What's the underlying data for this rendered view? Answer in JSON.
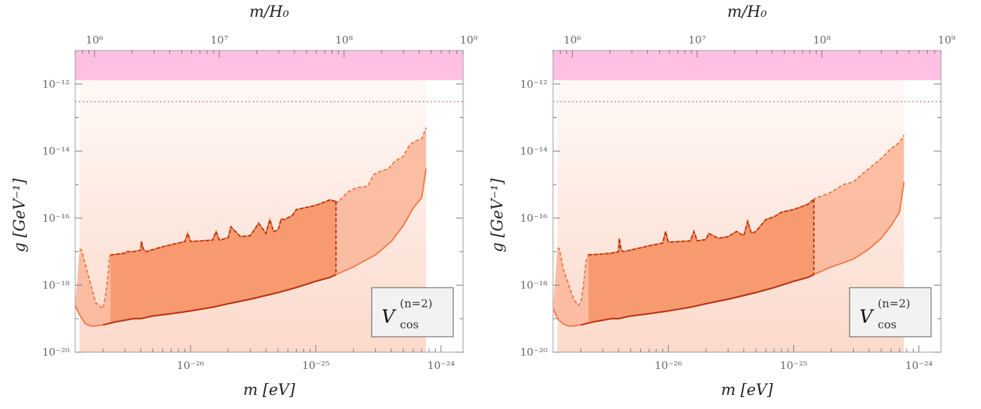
{
  "chart_data": [
    {
      "type": "area",
      "xlabel": "m [eV]",
      "ylabel": "g [GeV⁻¹]",
      "top_xlabel": "m/H₀",
      "legend_label": "V",
      "legend_sub": "cos",
      "legend_sup": "(n=2)",
      "x_ticks": [
        {
          "label": "10⁻²⁶",
          "value": 1e-26
        },
        {
          "label": "10⁻²⁵",
          "value": 1e-25
        },
        {
          "label": "10⁻²⁴",
          "value": 1e-24
        }
      ],
      "y_ticks": [
        {
          "label": "10⁻¹²",
          "value": 1e-12
        },
        {
          "label": "10⁻¹⁴",
          "value": 1e-14
        },
        {
          "label": "10⁻¹⁶",
          "value": 1e-16
        },
        {
          "label": "10⁻¹⁸",
          "value": 1e-18
        },
        {
          "label": "10⁻²⁰",
          "value": 1e-20
        }
      ],
      "top_ticks": [
        {
          "label": "10⁶",
          "value": 1000000.0
        },
        {
          "label": "10⁷",
          "value": 10000000.0
        },
        {
          "label": "10⁸",
          "value": 100000000.0
        },
        {
          "label": "10⁹",
          "value": 1000000000.0
        }
      ],
      "xlim": [
        1.2e-27,
        1.5e-24
      ],
      "ylim": [
        1e-20,
        1e-11
      ],
      "top_xlim": [
        700000.0,
        900000000.0
      ],
      "x_scale": "log",
      "y_scale": "log",
      "excluded_band_y": [
        1.3e-12,
        1e-11
      ],
      "dotted_line_y": 3e-13,
      "colors": {
        "excluded": "#ffc0e4",
        "light": "#fcd7c8",
        "mid": "#fbb89b",
        "dark": "#f89a70",
        "line_dark": "#b83410",
        "line_light": "#f27a4a",
        "dotted": "#c45a6a"
      },
      "series": [
        {
          "x": [
            1.3e-27,
            1.35e-27,
            1.45e-27,
            1.6e-27,
            1.75e-27,
            2e-27,
            2.1e-27,
            2.2e-27,
            2.25e-27,
            2.3e-27,
            2.35e-27,
            3e-27,
            3.1e-27,
            3.5e-27,
            4e-27,
            4.05e-27,
            4.2e-27,
            4.4e-27,
            6e-27,
            6.5e-27,
            7e-27,
            9e-27,
            9.5e-27,
            1e-26,
            1.5e-26,
            1.6e-26,
            1.7e-26,
            2e-26,
            2.1e-26,
            2.5e-26,
            3e-26,
            3.5e-26,
            4e-26,
            4.3e-26,
            4.6e-26,
            5e-26,
            5.3e-26,
            5.6e-26,
            6.5e-26,
            7e-26,
            8e-26,
            1e-25,
            1.3e-25,
            1.5e-25,
            1.8e-25,
            2.1e-25,
            2.6e-25,
            2.9e-25,
            3.3e-25,
            3.8e-25,
            4.3e-25,
            5e-25,
            5.6e-25,
            6.2e-25,
            7e-25,
            7.6e-25
          ],
          "y": [
            1.2e-17,
            1.1e-17,
            4e-18,
            1e-18,
            3e-19,
            2e-19,
            5e-19,
            2e-18,
            7e-18,
            8e-18,
            8e-18,
            9e-18,
            1e-17,
            1e-17,
            1.1e-17,
            2e-17,
            1.2e-17,
            1e-17,
            1.4e-17,
            1.5e-17,
            1.6e-17,
            2e-17,
            3.5e-17,
            2e-17,
            2.2e-17,
            4e-17,
            2.2e-17,
            2.6e-17,
            5.5e-17,
            2.8e-17,
            3e-17,
            7e-17,
            3.5e-17,
            9e-17,
            4e-17,
            4.4e-17,
            9.5e-17,
            9e-17,
            1.2e-16,
            1.8e-16,
            2e-16,
            2.4e-16,
            3.5e-16,
            3e-16,
            6e-16,
            8e-16,
            9e-16,
            2e-15,
            2.5e-15,
            3e-15,
            5e-15,
            7e-15,
            1.5e-14,
            2e-14,
            2.3e-14,
            5e-14
          ],
          "name": "dashed upper"
        },
        {
          "x": [
            1.2e-27,
            1.3e-27,
            1.45e-27,
            1.6e-27,
            1.7e-27,
            2e-27,
            2.5e-27,
            3e-27,
            3.5e-27,
            4e-27,
            5e-27,
            7e-27,
            1e-26,
            1.5e-26,
            2e-26,
            3e-26,
            5e-26,
            7e-26,
            1e-25,
            1.3e-25,
            1.5e-25,
            2e-25,
            3e-25,
            4e-25,
            5e-25,
            6e-25,
            7e-25,
            7.6e-25
          ],
          "y": [
            2.5e-19,
            1.3e-19,
            7e-20,
            6e-20,
            6e-20,
            6.5e-20,
            8e-20,
            9e-20,
            1e-19,
            1e-19,
            1.2e-19,
            1.4e-19,
            1.7e-19,
            2.2e-19,
            2.8e-19,
            3.8e-19,
            6e-19,
            8.5e-19,
            1.3e-18,
            1.7e-18,
            2.2e-18,
            3.5e-18,
            8e-18,
            2e-17,
            6e-17,
            2e-16,
            4e-16,
            3e-15
          ],
          "name": "solid lower"
        }
      ]
    },
    {
      "type": "area",
      "xlabel": "m [eV]",
      "ylabel": "g [GeV⁻¹]",
      "top_xlabel": "m/H₀",
      "legend_label": "V",
      "legend_sub": "cos",
      "legend_sup": "(n=2)",
      "x_ticks": [
        {
          "label": "10⁻²⁶",
          "value": 1e-26
        },
        {
          "label": "10⁻²⁵",
          "value": 1e-25
        },
        {
          "label": "10⁻²⁴",
          "value": 1e-24
        }
      ],
      "y_ticks": [
        {
          "label": "10⁻¹²",
          "value": 1e-12
        },
        {
          "label": "10⁻¹⁴",
          "value": 1e-14
        },
        {
          "label": "10⁻¹⁶",
          "value": 1e-16
        },
        {
          "label": "10⁻¹⁸",
          "value": 1e-18
        },
        {
          "label": "10⁻²⁰",
          "value": 1e-20
        }
      ],
      "top_ticks": [
        {
          "label": "10⁶",
          "value": 1000000.0
        },
        {
          "label": "10⁷",
          "value": 10000000.0
        },
        {
          "label": "10⁸",
          "value": 100000000.0
        },
        {
          "label": "10⁹",
          "value": 1000000000.0
        }
      ],
      "xlim": [
        1.2e-27,
        1.5e-24
      ],
      "ylim": [
        1e-20,
        1e-11
      ],
      "top_xlim": [
        700000.0,
        900000000.0
      ],
      "x_scale": "log",
      "y_scale": "log",
      "excluded_band_y": [
        1.3e-12,
        1e-11
      ],
      "dotted_line_y": 3e-13,
      "colors": {
        "excluded": "#ffc0e4",
        "light": "#fcd7c8",
        "mid": "#fbb89b",
        "dark": "#f89a70",
        "line_dark": "#b83410",
        "line_light": "#f27a4a",
        "dotted": "#c45a6a"
      },
      "series": [
        {
          "x": [
            1.3e-27,
            1.35e-27,
            1.45e-27,
            1.6e-27,
            1.75e-27,
            1.9e-27,
            2e-27,
            2.1e-27,
            2.2e-27,
            2.3e-27,
            2.35e-27,
            3e-27,
            3.5e-27,
            4e-27,
            4.05e-27,
            4.2e-27,
            4.4e-27,
            6e-27,
            6.5e-27,
            7e-27,
            9e-27,
            9.5e-27,
            1e-26,
            1.5e-26,
            1.6e-26,
            1.7e-26,
            2e-26,
            2.1e-26,
            2.5e-26,
            3e-26,
            3.5e-26,
            4e-26,
            4.3e-26,
            4.6e-26,
            5e-26,
            6e-26,
            7e-26,
            8e-26,
            1e-25,
            1.3e-25,
            1.5e-25,
            1.8e-25,
            2e-25,
            2.5e-25,
            3e-25,
            3.5e-25,
            4e-25,
            5e-25,
            6e-25,
            7e-25,
            7.6e-25
          ],
          "y": [
            1.3e-17,
            1.2e-17,
            3e-18,
            1e-18,
            4e-19,
            2.5e-19,
            3e-19,
            1e-18,
            5e-18,
            8e-18,
            8e-18,
            8.5e-18,
            9e-18,
            1e-17,
            2.5e-17,
            1.1e-17,
            1e-17,
            1.3e-17,
            1.4e-17,
            1.5e-17,
            1.8e-17,
            4e-17,
            1.9e-17,
            2.1e-17,
            4e-17,
            2.1e-17,
            2.3e-17,
            3.5e-17,
            2.5e-17,
            2.8e-17,
            4e-17,
            3e-17,
            8e-17,
            3.5e-17,
            4e-17,
            9e-17,
            1.1e-16,
            1.5e-16,
            1.8e-16,
            2.6e-16,
            4e-16,
            5e-16,
            6e-16,
            1e-15,
            1.2e-15,
            2e-15,
            3e-15,
            6e-15,
            1.2e-14,
            1.8e-14,
            3e-14
          ],
          "name": "dashed upper"
        },
        {
          "x": [
            1.2e-27,
            1.3e-27,
            1.45e-27,
            1.6e-27,
            1.7e-27,
            2e-27,
            2.5e-27,
            3e-27,
            3.5e-27,
            4e-27,
            5e-27,
            7e-27,
            1e-26,
            1.5e-26,
            2e-26,
            3e-26,
            5e-26,
            7e-26,
            1e-25,
            1.3e-25,
            1.5e-25,
            2e-25,
            3e-25,
            4e-25,
            5e-25,
            6e-25,
            7e-25,
            7.6e-25
          ],
          "y": [
            2e-19,
            1e-19,
            7e-20,
            6e-20,
            6e-20,
            6.5e-20,
            8e-20,
            9e-20,
            1e-19,
            1e-19,
            1.2e-19,
            1.4e-19,
            1.7e-19,
            2.2e-19,
            2.8e-19,
            3.8e-19,
            6e-19,
            8.5e-19,
            1.3e-18,
            1.7e-18,
            2.2e-18,
            3.5e-18,
            6e-18,
            1.2e-17,
            2.5e-17,
            6e-17,
            1.5e-16,
            1.2e-15
          ],
          "name": "solid lower"
        }
      ]
    }
  ]
}
